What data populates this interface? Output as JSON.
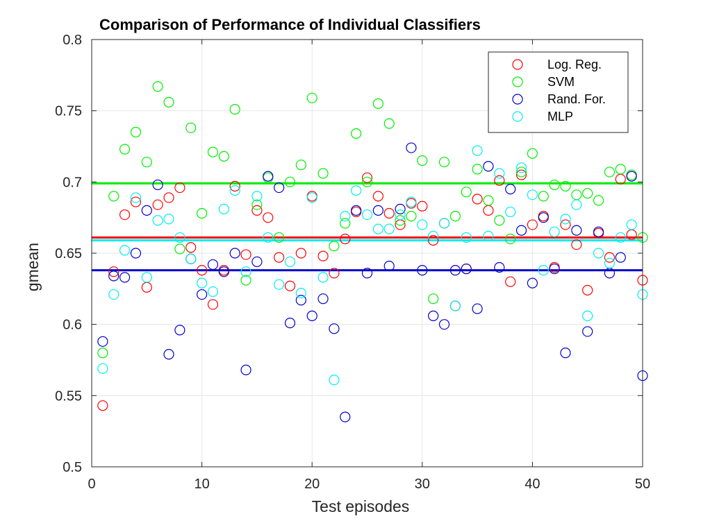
{
  "chart_data": {
    "type": "scatter",
    "title": "Comparison of Performance of Individual Classifiers",
    "xlabel": "Test episodes",
    "ylabel": "gmean",
    "xlim": [
      0,
      50
    ],
    "ylim": [
      0.5,
      0.8
    ],
    "xticks": [
      "0",
      "10",
      "20",
      "30",
      "40",
      "50"
    ],
    "yticks": [
      "0.5",
      "0.55",
      "0.6",
      "0.65",
      "0.7",
      "0.75",
      "0.8"
    ],
    "grid": true,
    "legend_position": "top-right",
    "series": [
      {
        "name": "Log. Reg.",
        "color": "#ff0000",
        "mean": 0.661,
        "x": [
          1,
          2,
          3,
          4,
          5,
          6,
          7,
          8,
          9,
          10,
          11,
          12,
          13,
          14,
          15,
          16,
          17,
          18,
          19,
          20,
          21,
          22,
          23,
          24,
          25,
          26,
          27,
          28,
          29,
          30,
          31,
          32,
          33,
          34,
          35,
          36,
          37,
          38,
          39,
          40,
          41,
          42,
          43,
          44,
          45,
          46,
          47,
          48,
          49,
          50
        ],
        "y": [
          0.543,
          0.637,
          0.677,
          0.686,
          0.626,
          0.684,
          0.689,
          0.696,
          0.654,
          0.638,
          0.614,
          0.638,
          0.697,
          0.649,
          0.68,
          0.675,
          0.647,
          0.627,
          0.65,
          0.69,
          0.648,
          0.636,
          0.66,
          0.679,
          0.703,
          0.69,
          0.678,
          0.67,
          0.685,
          0.683,
          0.659,
          0.671,
          0.613,
          0.639,
          0.688,
          0.68,
          0.701,
          0.63,
          0.705,
          0.67,
          0.676,
          0.64,
          0.67,
          0.656,
          0.624,
          0.664,
          0.647,
          0.702,
          0.663,
          0.631
        ]
      },
      {
        "name": "SVM",
        "color": "#00ee00",
        "mean": 0.699,
        "x": [
          1,
          2,
          3,
          4,
          5,
          6,
          7,
          8,
          9,
          10,
          11,
          12,
          13,
          14,
          15,
          16,
          17,
          18,
          19,
          20,
          21,
          22,
          23,
          24,
          25,
          26,
          27,
          28,
          29,
          30,
          31,
          32,
          33,
          34,
          35,
          36,
          37,
          38,
          39,
          40,
          41,
          42,
          43,
          44,
          45,
          46,
          47,
          48,
          49,
          50
        ],
        "y": [
          0.58,
          0.69,
          0.723,
          0.735,
          0.714,
          0.767,
          0.756,
          0.653,
          0.738,
          0.678,
          0.721,
          0.718,
          0.751,
          0.631,
          0.684,
          0.703,
          0.661,
          0.7,
          0.712,
          0.759,
          0.706,
          0.655,
          0.671,
          0.734,
          0.7,
          0.755,
          0.741,
          0.673,
          0.676,
          0.715,
          0.618,
          0.714,
          0.676,
          0.693,
          0.709,
          0.687,
          0.673,
          0.66,
          0.707,
          0.72,
          0.69,
          0.698,
          0.697,
          0.691,
          0.692,
          0.687,
          0.707,
          0.709,
          0.705,
          0.661
        ]
      },
      {
        "name": "Rand. For.",
        "color": "#0000cc",
        "mean": 0.638,
        "x": [
          1,
          2,
          3,
          4,
          5,
          6,
          7,
          8,
          9,
          10,
          11,
          12,
          13,
          14,
          15,
          16,
          17,
          18,
          19,
          20,
          21,
          22,
          23,
          24,
          25,
          26,
          27,
          28,
          29,
          30,
          31,
          32,
          33,
          34,
          35,
          36,
          37,
          38,
          39,
          40,
          41,
          42,
          43,
          44,
          45,
          46,
          47,
          48,
          49,
          50
        ],
        "y": [
          0.588,
          0.634,
          0.633,
          0.65,
          0.68,
          0.698,
          0.579,
          0.596,
          0.646,
          0.621,
          0.642,
          0.637,
          0.65,
          0.568,
          0.644,
          0.704,
          0.696,
          0.601,
          0.617,
          0.606,
          0.618,
          0.597,
          0.535,
          0.68,
          0.636,
          0.68,
          0.641,
          0.681,
          0.724,
          0.638,
          0.606,
          0.6,
          0.638,
          0.639,
          0.611,
          0.711,
          0.64,
          0.695,
          0.666,
          0.629,
          0.675,
          0.639,
          0.58,
          0.666,
          0.595,
          0.665,
          0.636,
          0.647,
          0.704,
          0.564
        ]
      },
      {
        "name": "MLP",
        "color": "#00eeee",
        "mean": 0.659,
        "x": [
          1,
          2,
          3,
          4,
          5,
          6,
          7,
          8,
          9,
          10,
          11,
          12,
          13,
          14,
          15,
          16,
          17,
          18,
          19,
          20,
          21,
          22,
          23,
          24,
          25,
          26,
          27,
          28,
          29,
          30,
          31,
          32,
          33,
          34,
          35,
          36,
          37,
          38,
          39,
          40,
          41,
          42,
          43,
          44,
          45,
          46,
          47,
          48,
          49,
          50
        ],
        "y": [
          0.569,
          0.621,
          0.652,
          0.689,
          0.633,
          0.673,
          0.674,
          0.661,
          0.646,
          0.629,
          0.623,
          0.681,
          0.694,
          0.637,
          0.69,
          0.661,
          0.628,
          0.644,
          0.622,
          0.689,
          0.633,
          0.561,
          0.676,
          0.694,
          0.677,
          0.667,
          0.667,
          0.677,
          0.686,
          0.67,
          0.662,
          0.671,
          0.613,
          0.661,
          0.722,
          0.662,
          0.706,
          0.679,
          0.71,
          0.691,
          0.638,
          0.665,
          0.674,
          0.684,
          0.606,
          0.65,
          0.643,
          0.661,
          0.67,
          0.621
        ]
      }
    ]
  }
}
